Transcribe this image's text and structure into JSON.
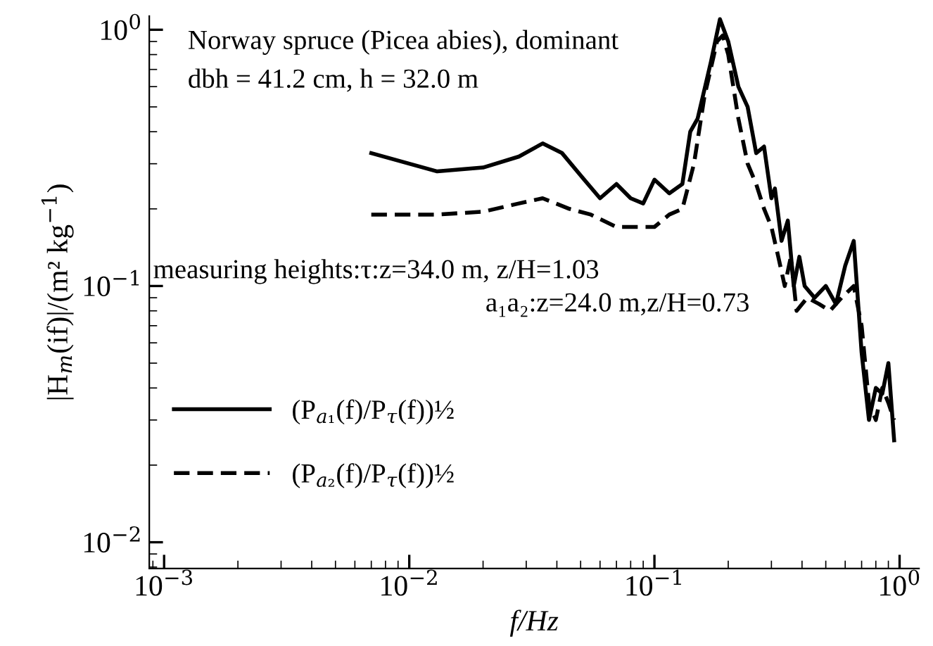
{
  "chart_data": {
    "type": "line",
    "xlabel": "f/Hz",
    "ylabel": "|H$_{m}$(if)|/(m² kg$^{−1}$)",
    "annotations": [
      "Norway spruce (Picea abies), dominant",
      "dbh = 41.2 cm, h = 32.0 m",
      "measuring heights:τ:z=34.0 m, z/H=1.03",
      "a₁a₂:z=24.0 m,z/H=0.73"
    ],
    "log": "xy",
    "grid": false,
    "legend": "bottom left",
    "xlim": [
      0.00087,
      1.2
    ],
    "ylim": [
      0.0079,
      1.13
    ],
    "xticks": [
      {
        "value": 0.001,
        "label": "10$^{−3}$"
      },
      {
        "value": 0.01,
        "label": "10$^{−2}$"
      },
      {
        "value": 0.1,
        "label": "10$^{−1}$"
      },
      {
        "value": 1,
        "label": "10$^{0}$"
      }
    ],
    "yticks": [
      {
        "value": 0.01,
        "label": "10$^{−2}$"
      },
      {
        "value": 0.1,
        "label": "10$^{−1}$"
      },
      {
        "value": 1,
        "label": "10$^{0}$"
      }
    ],
    "series": [
      {
        "name": "(P$_{a₁}$(f)/P$_{τ}$(f))½",
        "color": "#000000",
        "line_style": "solid",
        "x": [
          0.007,
          0.013,
          0.02,
          0.028,
          0.035,
          0.042,
          0.05,
          0.06,
          0.07,
          0.08,
          0.09,
          0.1,
          0.115,
          0.13,
          0.14,
          0.15,
          0.17,
          0.185,
          0.2,
          0.22,
          0.24,
          0.26,
          0.28,
          0.3,
          0.31,
          0.33,
          0.35,
          0.37,
          0.39,
          0.41,
          0.45,
          0.5,
          0.55,
          0.6,
          0.65,
          0.7,
          0.75,
          0.8,
          0.85,
          0.9,
          0.95
        ],
        "values": [
          0.33,
          0.28,
          0.29,
          0.32,
          0.36,
          0.33,
          0.27,
          0.22,
          0.25,
          0.22,
          0.21,
          0.26,
          0.23,
          0.25,
          0.4,
          0.45,
          0.75,
          1.1,
          0.9,
          0.6,
          0.5,
          0.33,
          0.35,
          0.22,
          0.24,
          0.15,
          0.18,
          0.1,
          0.13,
          0.1,
          0.09,
          0.1,
          0.085,
          0.12,
          0.15,
          0.055,
          0.03,
          0.04,
          0.038,
          0.05,
          0.025
        ]
      },
      {
        "name": "(P$_{a₂}$(f)/P$_{τ}$(f))½",
        "color": "#000000",
        "line_style": "dashed",
        "x": [
          0.007,
          0.013,
          0.02,
          0.028,
          0.035,
          0.045,
          0.055,
          0.07,
          0.09,
          0.1,
          0.115,
          0.13,
          0.145,
          0.16,
          0.18,
          0.19,
          0.2,
          0.22,
          0.24,
          0.26,
          0.28,
          0.3,
          0.32,
          0.34,
          0.36,
          0.38,
          0.42,
          0.47,
          0.52,
          0.58,
          0.65,
          0.7,
          0.75,
          0.8,
          0.85,
          0.9,
          0.95
        ],
        "values": [
          0.19,
          0.19,
          0.195,
          0.21,
          0.22,
          0.2,
          0.19,
          0.17,
          0.17,
          0.17,
          0.19,
          0.2,
          0.3,
          0.55,
          0.9,
          0.95,
          0.8,
          0.45,
          0.3,
          0.25,
          0.2,
          0.17,
          0.13,
          0.1,
          0.13,
          0.08,
          0.09,
          0.085,
          0.08,
          0.09,
          0.1,
          0.07,
          0.035,
          0.03,
          0.04,
          0.035,
          0.03
        ]
      }
    ]
  }
}
